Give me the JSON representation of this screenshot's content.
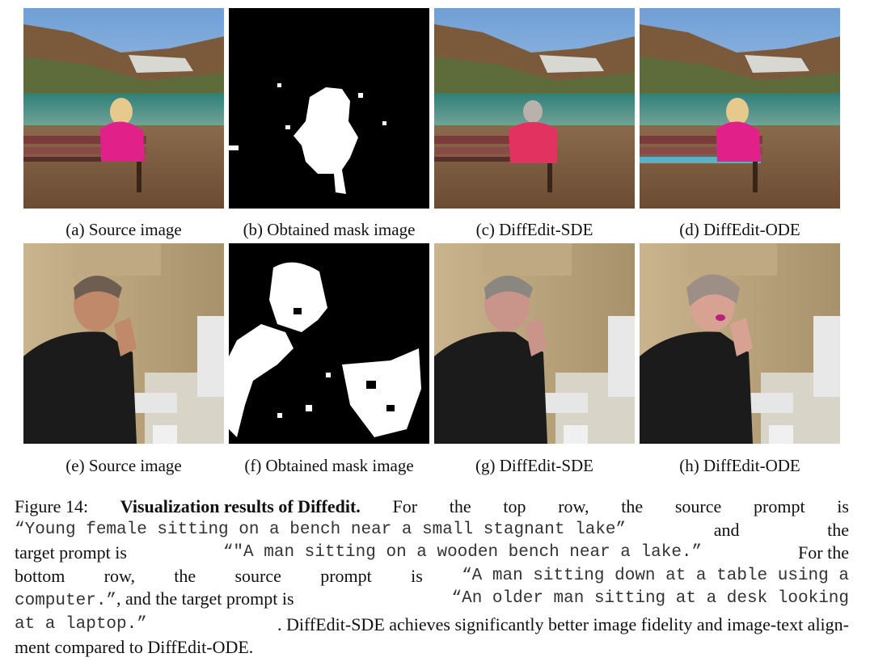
{
  "panels": {
    "a": "(a) Source image",
    "b": "(b) Obtained mask image",
    "c": "(c) DiffEdit-SDE",
    "d": "(d) DiffEdit-ODE",
    "e": "(e) Source image",
    "f": "(f) Obtained mask image",
    "g": "(g) DiffEdit-SDE",
    "h": "(h) DiffEdit-ODE"
  },
  "caption": {
    "label": "Figure 14:",
    "title": "Visualization results of Diffedit.",
    "l1_w": [
      "For",
      "the",
      "top",
      "row,",
      "the",
      "source",
      "prompt",
      "is"
    ],
    "l2_q": "“Young female sitting on a bench near a small stagnant lake”",
    "l2_a": "and",
    "l2_b": "the",
    "l3_a": "target prompt is",
    "l3_q": "“\"A man sitting on a wooden bench near a lake.”",
    "l3_b": "For the",
    "l4_w": [
      "bottom",
      "row,",
      "the",
      "source",
      "prompt",
      "is"
    ],
    "l4_q": "“A man sitting down at a table using a",
    "l5_q": "computer.”",
    "l5_a": ", and the target prompt is",
    "l5_q2": "“An older man sitting at a desk looking",
    "l6_q": "at a laptop.”",
    "l6_a": ". DiffEdit-SDE achieves significantly better image fidelity and image-text align-",
    "l7": "ment compared to DiffEdit-ODE."
  }
}
